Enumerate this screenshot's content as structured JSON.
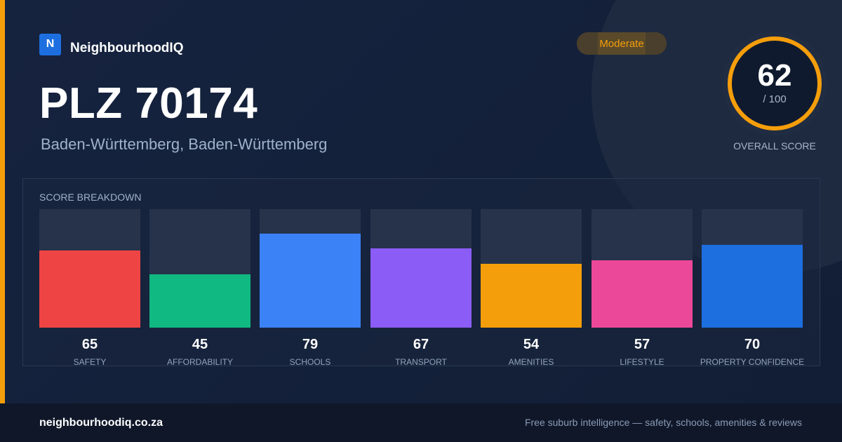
{
  "brand": {
    "logo_letter": "N",
    "name": "NeighbourhoodIQ",
    "logo_color": "#1d6fe0"
  },
  "title": "PLZ 70174",
  "subtitle": "Baden-Württemberg, Baden-Württemberg",
  "badge": {
    "label": "Moderate",
    "color": "#f59e0b"
  },
  "overall": {
    "score": "62",
    "max": "/ 100",
    "label": "OVERALL SCORE",
    "value": 62,
    "ring_color": "#f59e0b"
  },
  "breakdown": {
    "title": "SCORE BREAKDOWN",
    "items": [
      {
        "label": "SAFETY",
        "value": "65",
        "color": "#ef4444",
        "fill_pct": 65
      },
      {
        "label": "AFFORDABILITY",
        "value": "45",
        "color": "#10b981",
        "fill_pct": 45
      },
      {
        "label": "SCHOOLS",
        "value": "79",
        "color": "#3b82f6",
        "fill_pct": 79
      },
      {
        "label": "TRANSPORT",
        "value": "67",
        "color": "#8b5cf6",
        "fill_pct": 67
      },
      {
        "label": "AMENITIES",
        "value": "54",
        "color": "#f59e0b",
        "fill_pct": 54
      },
      {
        "label": "LIFESTYLE",
        "value": "57",
        "color": "#ec4899",
        "fill_pct": 57
      },
      {
        "label": "PROPERTY CONFIDENCE",
        "value": "70",
        "color": "#1d6fe0",
        "fill_pct": 70
      }
    ]
  },
  "footer": {
    "url": "neighbourhoodiq.co.za",
    "tagline": "Free suburb intelligence — safety, schools, amenities & reviews"
  }
}
